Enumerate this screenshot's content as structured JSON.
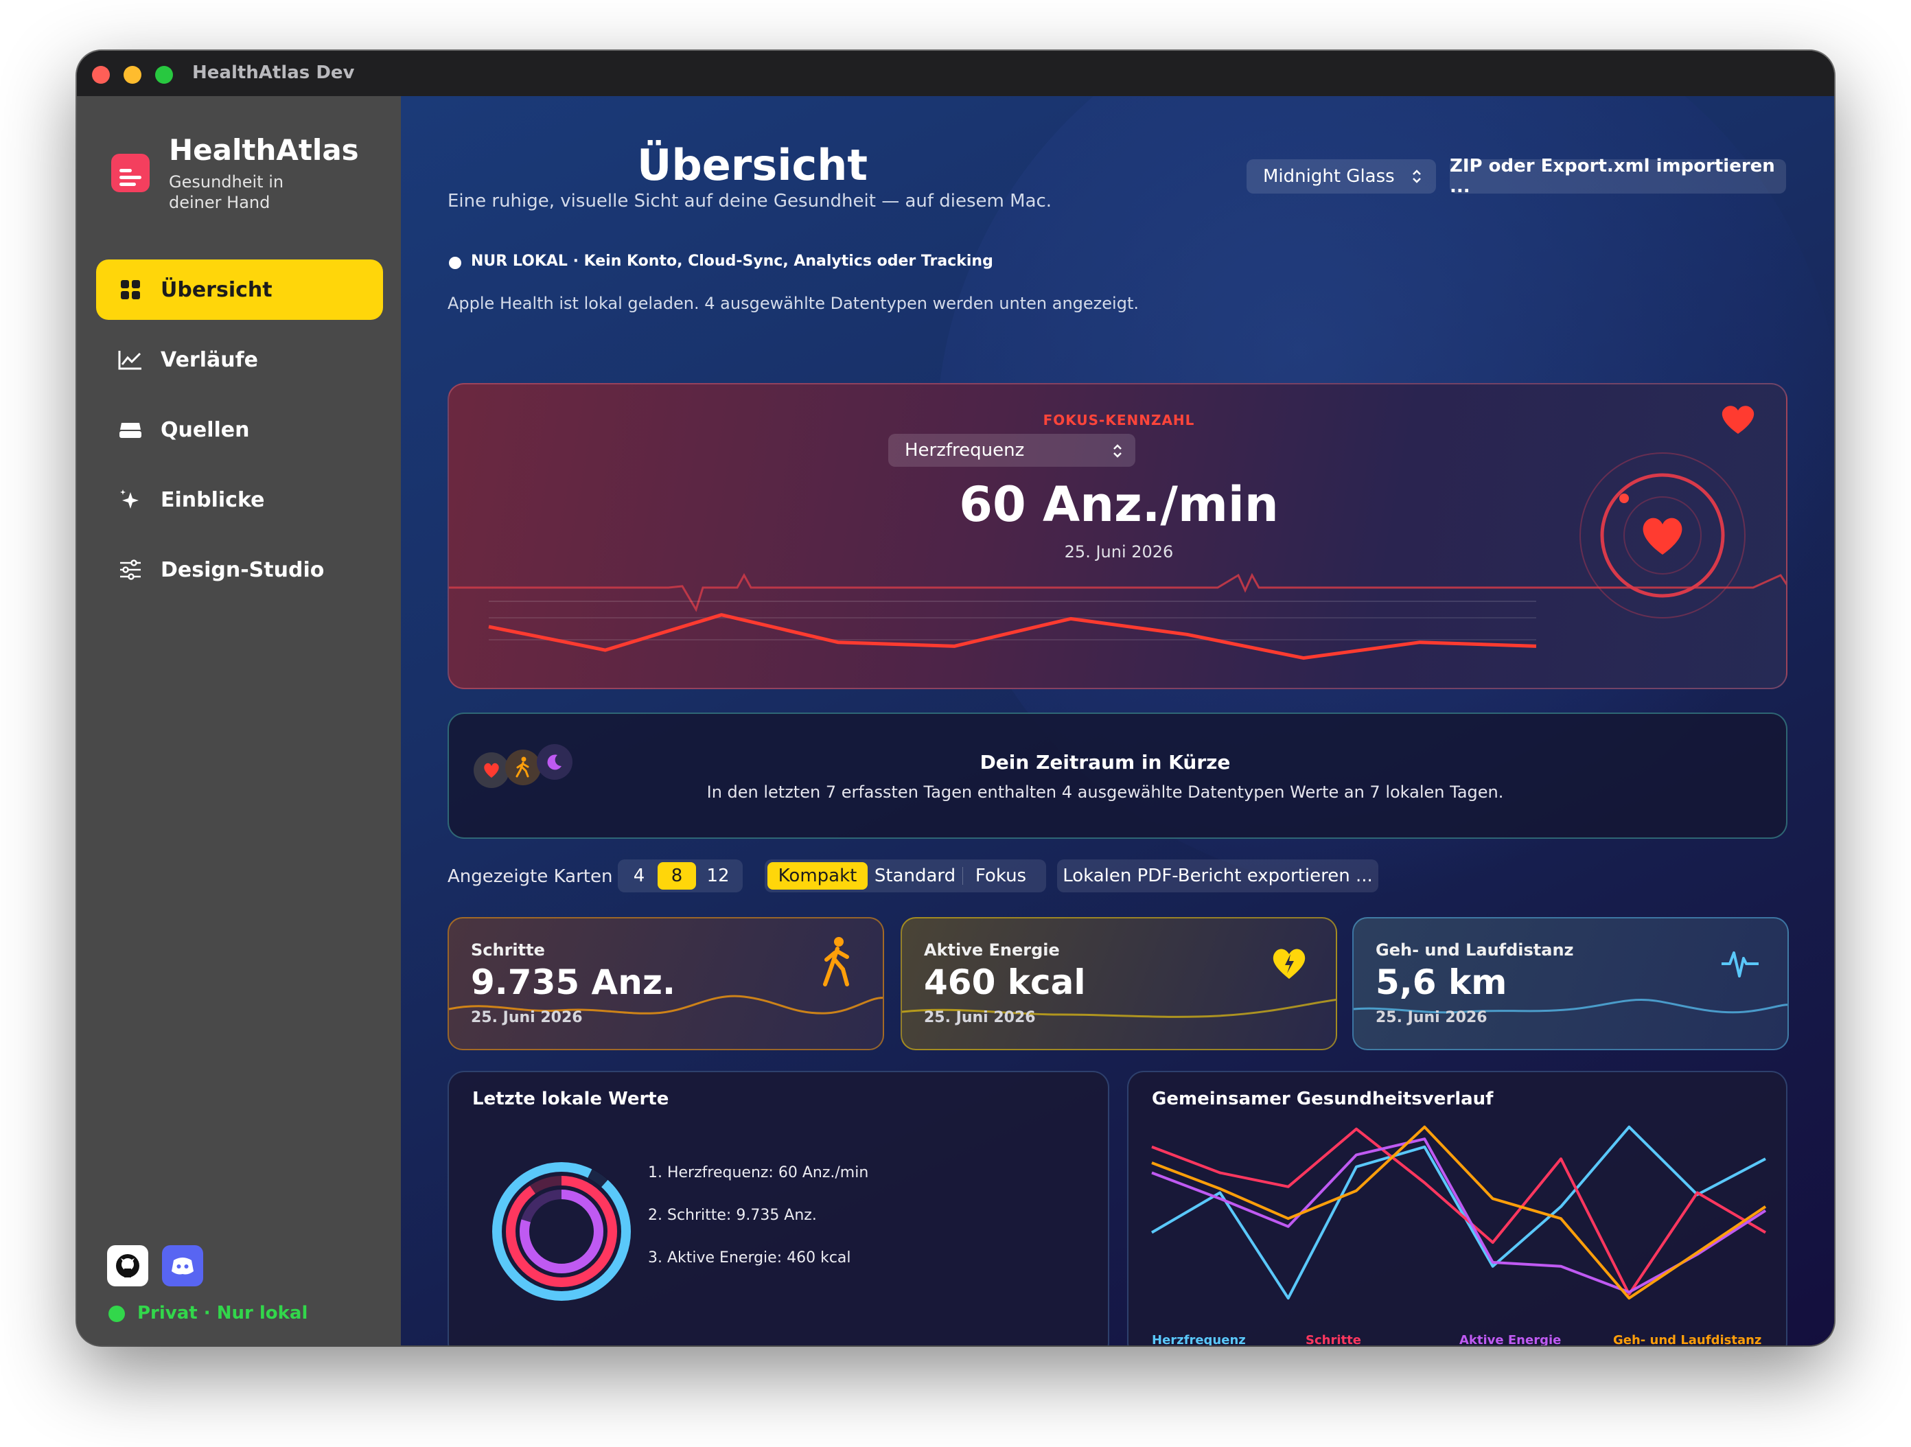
{
  "window": {
    "title": "HealthAtlas Dev"
  },
  "sidebar": {
    "app_name": "HealthAtlas",
    "app_tagline": "Gesundheit in deiner Hand",
    "items": [
      {
        "label": "Übersicht",
        "icon": "grid-icon",
        "active": true
      },
      {
        "label": "Verläufe",
        "icon": "chart-line-icon",
        "active": false
      },
      {
        "label": "Quellen",
        "icon": "stack-icon",
        "active": false
      },
      {
        "label": "Einblicke",
        "icon": "sparkles-icon",
        "active": false
      },
      {
        "label": "Design-Studio",
        "icon": "sliders-icon",
        "active": false
      }
    ],
    "privacy_label": "Privat · Nur lokal"
  },
  "header": {
    "title": "Übersicht",
    "subtitle": "Eine ruhige, visuelle Sicht auf deine Gesundheit — auf diesem Mac.",
    "theme_select": "Midnight Glass",
    "import_button": "ZIP oder Export.xml importieren ..."
  },
  "privacy_banner": "NUR LOKAL · Kein Konto, Cloud-Sync, Analytics oder Tracking",
  "status_text": "Apple Health ist lokal geladen. 4 ausgewählte Datentypen werden unten angezeigt.",
  "focus": {
    "label": "FOKUS-KENNZAHL",
    "metric_select": "Herzfrequenz",
    "value": "60 Anz./min",
    "date": "25. Juni 2026",
    "sparkline": [
      68,
      62,
      71,
      64,
      63,
      70,
      66,
      60,
      64,
      63
    ]
  },
  "summary": {
    "title": "Dein Zeitraum in Kürze",
    "text": "In den letzten 7 erfassten Tagen enthalten 4 ausgewählte Datentypen Werte an 7 lokalen Tagen."
  },
  "controls": {
    "label": "Angezeigte Karten",
    "counts": [
      "4",
      "8",
      "12"
    ],
    "count_selected": "8",
    "modes": [
      "Kompakt",
      "Standard",
      "Fokus"
    ],
    "mode_selected": "Kompakt",
    "pdf_button": "Lokalen PDF-Bericht exportieren ..."
  },
  "metrics": [
    {
      "name": "Schritte",
      "value": "9.735 Anz.",
      "date": "25. Juni 2026",
      "icon": "walking-icon",
      "color": "#ff9f0a"
    },
    {
      "name": "Aktive Energie",
      "value": "460 kcal",
      "date": "25. Juni 2026",
      "icon": "heart-bolt-icon",
      "color": "#ffd60a"
    },
    {
      "name": "Geh- und Laufdistanz",
      "value": "5,6 km",
      "date": "25. Juni 2026",
      "icon": "waveform-icon",
      "color": "#5ac8fa"
    }
  ],
  "recent": {
    "title": "Letzte lokale Werte",
    "items": [
      "1. Herzfrequenz: 60 Anz./min",
      "2. Schritte: 9.735 Anz.",
      "3. Aktive Energie: 460 kcal"
    ]
  },
  "trend": {
    "title": "Gemeinsamer Gesundheitsverlauf",
    "chart_data": {
      "type": "line",
      "x": [
        1,
        2,
        3,
        4,
        5,
        6,
        7,
        8,
        9,
        10
      ],
      "series": [
        {
          "name": "Herzfrequenz",
          "color": "#5ac8fa",
          "values": [
            0.45,
            0.65,
            0.12,
            0.78,
            0.88,
            0.28,
            0.58,
            0.98,
            0.64,
            0.82
          ]
        },
        {
          "name": "Schritte",
          "color": "#ff375f",
          "values": [
            0.88,
            0.75,
            0.68,
            0.97,
            0.7,
            0.4,
            0.82,
            0.14,
            0.65,
            0.45
          ]
        },
        {
          "name": "Aktive Energie",
          "color": "#bf5af2",
          "values": [
            0.75,
            0.62,
            0.48,
            0.84,
            0.92,
            0.3,
            0.28,
            0.15,
            0.34,
            0.56
          ]
        },
        {
          "name": "Geh- und Laufdistanz",
          "color": "#ff9f0a",
          "values": [
            0.8,
            0.67,
            0.52,
            0.66,
            0.98,
            0.62,
            0.52,
            0.12,
            0.35,
            0.58
          ]
        }
      ],
      "grid": false,
      "legend": "bottom"
    }
  }
}
